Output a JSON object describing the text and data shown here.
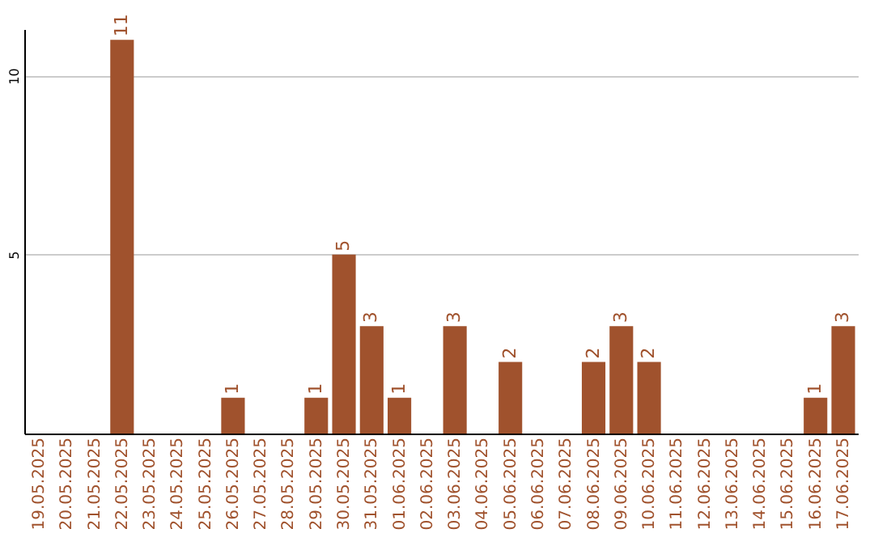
{
  "chart_data": {
    "type": "bar",
    "categories": [
      "19.05.2025",
      "20.05.2025",
      "21.05.2025",
      "22.05.2025",
      "23.05.2025",
      "24.05.2025",
      "25.05.2025",
      "26.05.2025",
      "27.05.2025",
      "28.05.2025",
      "29.05.2025",
      "30.05.2025",
      "31.05.2025",
      "01.06.2025",
      "02.06.2025",
      "03.06.2025",
      "04.06.2025",
      "05.06.2025",
      "06.06.2025",
      "07.06.2025",
      "08.06.2025",
      "09.06.2025",
      "10.06.2025",
      "11.06.2025",
      "12.06.2025",
      "13.06.2025",
      "14.06.2025",
      "15.06.2025",
      "16.06.2025",
      "17.06.2025"
    ],
    "values": [
      0,
      0,
      0,
      11,
      0,
      0,
      0,
      1,
      0,
      0,
      1,
      5,
      3,
      1,
      0,
      3,
      0,
      2,
      0,
      0,
      2,
      3,
      2,
      0,
      0,
      0,
      0,
      0,
      1,
      3
    ],
    "value_labels": [
      null,
      null,
      null,
      "11",
      null,
      null,
      null,
      "1",
      null,
      null,
      "1",
      "5",
      "3",
      "1",
      null,
      "3",
      null,
      "2",
      null,
      null,
      "2",
      "3",
      "2",
      null,
      null,
      null,
      null,
      null,
      "1",
      "3"
    ],
    "color": "#a0522d",
    "ylim": [
      0,
      11.3
    ],
    "yticks": [
      5,
      10
    ],
    "grid": "y"
  }
}
